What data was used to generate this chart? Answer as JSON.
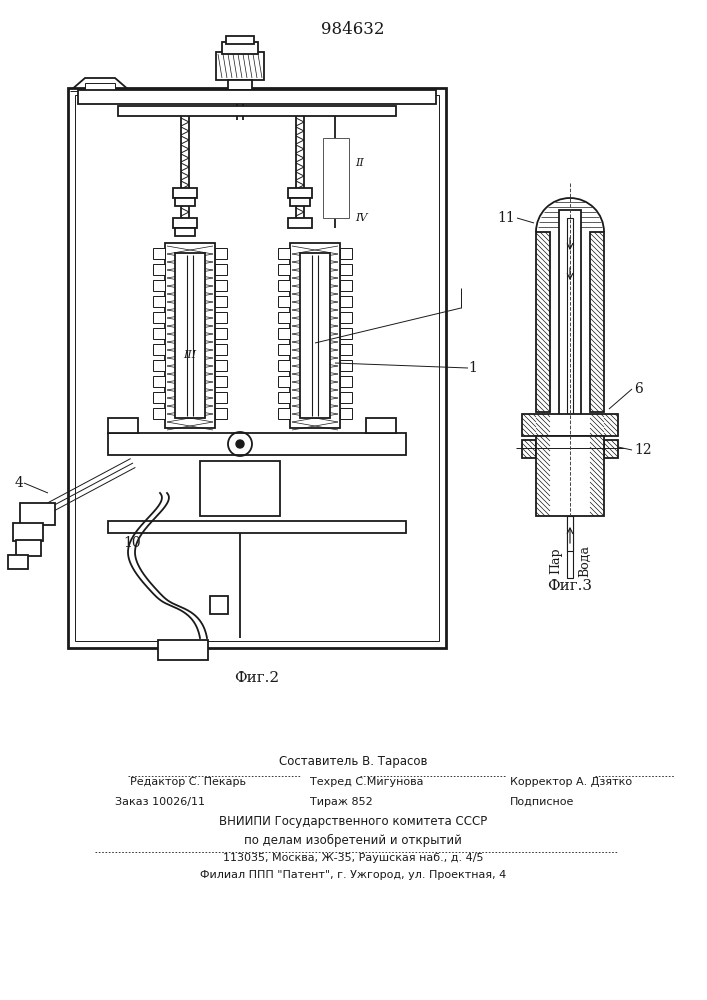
{
  "patent_number": "984632",
  "fig2_label": "Фиг.2",
  "fig3_label": "Фиг.3",
  "line_color": "#1a1a1a",
  "footnote_lines": [
    "Составитель В. Тарасов",
    "Редактор С. Пекарь",
    "Техред С.Мигунова",
    "Корректор А. Дзятко",
    "Заказ 10026/11",
    "Тираж 852",
    "Подписное",
    "ВНИИПИ Государственного комитета СССР",
    "по делам изобретений и открытий",
    "113035, Москва, Ж-35, Раушская наб., д. 4/5",
    "Филиал ППП \"Патент\", г. Ужгород, ул. Проектная, 4"
  ],
  "label_I": "1",
  "label_II": "II",
  "label_III": "III",
  "label_IV": "IV",
  "label_4": "4",
  "label_10": "10",
  "label_11": "11",
  "label_6": "6",
  "label_12": "12",
  "label_par": "Пар",
  "label_voda": "Вода"
}
